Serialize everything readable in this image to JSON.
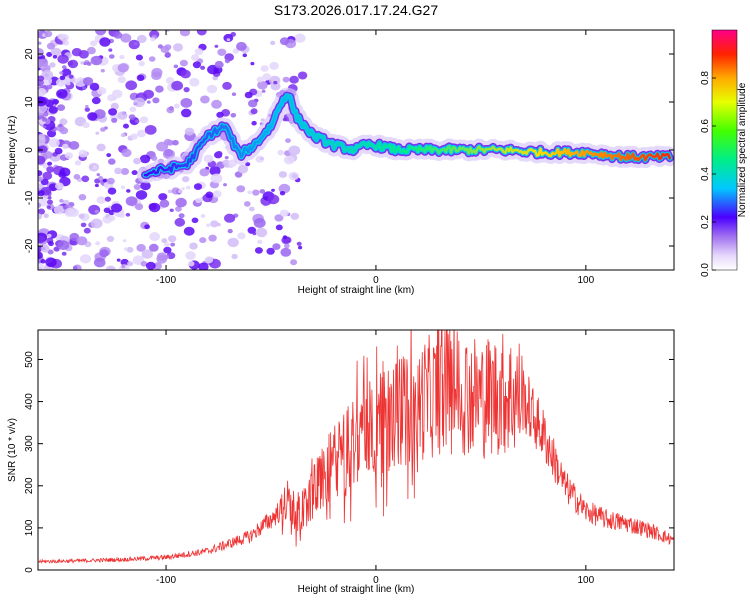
{
  "title": "S173.2026.017.17.24.G27",
  "colors": {
    "snr_line": "#ee3333",
    "axis": "#000000"
  },
  "chart_data": [
    {
      "type": "heatmap",
      "title": "S173.2026.017.17.24.G27",
      "xlabel": "Height of straight line (km)",
      "ylabel": "Frequency (Hz)",
      "xlim": [
        -161,
        142
      ],
      "ylim": [
        -25,
        25
      ],
      "xticks": [
        -100,
        0,
        100
      ],
      "xtick_labels": [
        "-100",
        "0",
        "100"
      ],
      "yticks": [
        -20,
        -10,
        0,
        10,
        20
      ],
      "ytick_labels": [
        "-20",
        "-10",
        "0",
        "10",
        "20"
      ],
      "ridge": {
        "x": [
          -110,
          -100,
          -90,
          -80,
          -72,
          -65,
          -58,
          -50,
          -45,
          -42,
          -38,
          -30,
          -20,
          -10,
          -5,
          0,
          10,
          20,
          40,
          60,
          80,
          100,
          110,
          120,
          130,
          140
        ],
        "y": [
          -5,
          -4,
          -3,
          3,
          5,
          -1,
          1,
          5,
          10,
          12,
          7,
          3,
          1,
          0,
          1,
          1,
          0,
          0,
          0,
          0,
          -0.5,
          -0.5,
          -1,
          -1.5,
          -1.5,
          -1.5
        ]
      },
      "colorbar": {
        "label": "Normalized spectral amplitude",
        "range": [
          0,
          1
        ],
        "ticks": [
          0,
          0.2,
          0.4,
          0.6,
          0.8
        ],
        "tick_labels": [
          "0.0",
          "0.2",
          "0.4",
          "0.6",
          "0.8"
        ]
      }
    },
    {
      "type": "line",
      "xlabel": "Height of straight line (km)",
      "ylabel": "SNR (10 * v/v)",
      "xlim": [
        -161,
        142
      ],
      "ylim": [
        0,
        570
      ],
      "xticks": [
        -100,
        0,
        100
      ],
      "xtick_labels": [
        "-100",
        "0",
        "100"
      ],
      "yticks": [
        0,
        100,
        200,
        300,
        400,
        500
      ],
      "ytick_labels": [
        "0",
        "100",
        "200",
        "300",
        "400",
        "500"
      ],
      "series": [
        {
          "name": "SNR",
          "envelope_x": [
            -161,
            -140,
            -120,
            -100,
            -80,
            -60,
            -50,
            -42,
            -38,
            -30,
            -25,
            -20,
            -15,
            -10,
            -5,
            0,
            10,
            20,
            30,
            40,
            50,
            60,
            70,
            80,
            90,
            100,
            110,
            120,
            130,
            142
          ],
          "envelope_y": [
            20,
            22,
            25,
            30,
            45,
            80,
            120,
            160,
            130,
            180,
            230,
            250,
            280,
            310,
            330,
            340,
            370,
            400,
            420,
            430,
            410,
            420,
            410,
            320,
            200,
            140,
            120,
            110,
            95,
            70
          ]
        }
      ]
    }
  ]
}
